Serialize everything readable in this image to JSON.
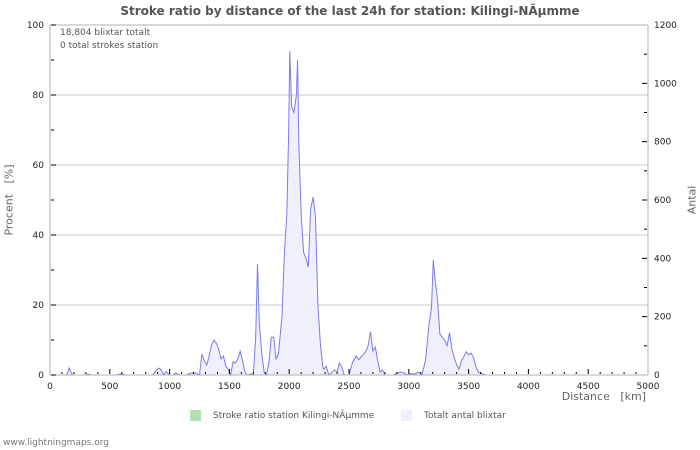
{
  "chart_data": {
    "type": "area",
    "title": "Stroke ratio by distance of the last 24h for station: Kilingi-NÃµmme",
    "xlabel": "Distance   [km]",
    "ylabel_left": "Procent   [%]",
    "ylabel_right": "Antal",
    "xlim": [
      0,
      5000
    ],
    "ylim_left": [
      0,
      100
    ],
    "ylim_right": [
      0,
      1200
    ],
    "x_ticks": [
      0,
      500,
      1000,
      1500,
      2000,
      2500,
      3000,
      3500,
      4000,
      4500,
      5000
    ],
    "y_left_ticks": [
      0,
      20,
      40,
      60,
      80,
      100
    ],
    "y_right_ticks": [
      0,
      200,
      400,
      600,
      800,
      1000,
      1200
    ],
    "grid": true,
    "legend_position": "bottom",
    "annotations": [
      "18,804 blixtar totalt",
      "0 total strokes station"
    ],
    "series": [
      {
        "name": "Stroke ratio station Kilingi-NÃµmme",
        "axis": "left",
        "color": "#b3e0b3",
        "points": []
      },
      {
        "name": "Totalt antal blixtar",
        "axis": "right",
        "color": "#7b7bea",
        "fill": "#f0f0fc",
        "points": [
          [
            0,
            0
          ],
          [
            140,
            0
          ],
          [
            160,
            24
          ],
          [
            175,
            10
          ],
          [
            190,
            0
          ],
          [
            300,
            0
          ],
          [
            320,
            3
          ],
          [
            340,
            0
          ],
          [
            560,
            0
          ],
          [
            580,
            3
          ],
          [
            610,
            3
          ],
          [
            630,
            0
          ],
          [
            860,
            0
          ],
          [
            880,
            12
          ],
          [
            910,
            24
          ],
          [
            930,
            17
          ],
          [
            950,
            0
          ],
          [
            970,
            12
          ],
          [
            990,
            3
          ],
          [
            1010,
            0
          ],
          [
            1030,
            0
          ],
          [
            1050,
            7
          ],
          [
            1070,
            3
          ],
          [
            1090,
            0
          ],
          [
            1140,
            0
          ],
          [
            1180,
            7
          ],
          [
            1220,
            7
          ],
          [
            1250,
            0
          ],
          [
            1270,
            72
          ],
          [
            1290,
            48
          ],
          [
            1310,
            34
          ],
          [
            1330,
            65
          ],
          [
            1350,
            103
          ],
          [
            1370,
            120
          ],
          [
            1390,
            110
          ],
          [
            1410,
            90
          ],
          [
            1430,
            55
          ],
          [
            1450,
            65
          ],
          [
            1470,
            30
          ],
          [
            1490,
            20
          ],
          [
            1510,
            0
          ],
          [
            1530,
            45
          ],
          [
            1550,
            41
          ],
          [
            1570,
            55
          ],
          [
            1590,
            82
          ],
          [
            1610,
            48
          ],
          [
            1630,
            10
          ],
          [
            1650,
            0
          ],
          [
            1670,
            3
          ],
          [
            1690,
            3
          ],
          [
            1700,
            0
          ],
          [
            1720,
            130
          ],
          [
            1735,
            380
          ],
          [
            1750,
            180
          ],
          [
            1770,
            75
          ],
          [
            1790,
            10
          ],
          [
            1810,
            0
          ],
          [
            1830,
            41
          ],
          [
            1850,
            130
          ],
          [
            1870,
            130
          ],
          [
            1890,
            55
          ],
          [
            1910,
            72
          ],
          [
            1940,
            200
          ],
          [
            1960,
            420
          ],
          [
            1980,
            550
          ],
          [
            1995,
            820
          ],
          [
            2005,
            1110
          ],
          [
            2020,
            920
          ],
          [
            2040,
            900
          ],
          [
            2060,
            960
          ],
          [
            2070,
            1080
          ],
          [
            2080,
            800
          ],
          [
            2100,
            550
          ],
          [
            2120,
            420
          ],
          [
            2140,
            400
          ],
          [
            2160,
            370
          ],
          [
            2180,
            570
          ],
          [
            2200,
            610
          ],
          [
            2220,
            540
          ],
          [
            2240,
            240
          ],
          [
            2260,
            110
          ],
          [
            2280,
            30
          ],
          [
            2290,
            20
          ],
          [
            2310,
            30
          ],
          [
            2330,
            0
          ],
          [
            2360,
            10
          ],
          [
            2380,
            17
          ],
          [
            2400,
            10
          ],
          [
            2420,
            41
          ],
          [
            2440,
            27
          ],
          [
            2460,
            0
          ],
          [
            2500,
            0
          ],
          [
            2530,
            44
          ],
          [
            2560,
            65
          ],
          [
            2580,
            52
          ],
          [
            2600,
            62
          ],
          [
            2620,
            70
          ],
          [
            2640,
            80
          ],
          [
            2660,
            100
          ],
          [
            2680,
            148
          ],
          [
            2700,
            82
          ],
          [
            2720,
            96
          ],
          [
            2740,
            50
          ],
          [
            2760,
            10
          ],
          [
            2780,
            17
          ],
          [
            2800,
            0
          ],
          [
            2870,
            0
          ],
          [
            2900,
            5
          ],
          [
            2930,
            10
          ],
          [
            2960,
            7
          ],
          [
            2990,
            0
          ],
          [
            3020,
            5
          ],
          [
            3050,
            3
          ],
          [
            3080,
            10
          ],
          [
            3110,
            0
          ],
          [
            3140,
            50
          ],
          [
            3170,
            175
          ],
          [
            3190,
            230
          ],
          [
            3205,
            395
          ],
          [
            3220,
            325
          ],
          [
            3240,
            260
          ],
          [
            3260,
            140
          ],
          [
            3280,
            130
          ],
          [
            3300,
            120
          ],
          [
            3320,
            100
          ],
          [
            3340,
            145
          ],
          [
            3360,
            90
          ],
          [
            3380,
            60
          ],
          [
            3400,
            35
          ],
          [
            3420,
            20
          ],
          [
            3440,
            48
          ],
          [
            3460,
            62
          ],
          [
            3480,
            80
          ],
          [
            3500,
            70
          ],
          [
            3520,
            75
          ],
          [
            3540,
            60
          ],
          [
            3560,
            30
          ],
          [
            3580,
            10
          ],
          [
            3600,
            7
          ],
          [
            3620,
            3
          ],
          [
            3640,
            0
          ],
          [
            5000,
            0
          ]
        ]
      }
    ]
  },
  "header": {
    "title": "Stroke ratio by distance of the last 24h for station: Kilingi-NÃµmme"
  },
  "info": {
    "total_strokes": "18,804 blixtar totalt",
    "station_strokes": "0 total strokes station"
  },
  "axes": {
    "xlabel": "Distance   [km]",
    "ylabel_left": "Procent   [%]",
    "ylabel_right": "Antal"
  },
  "legend": {
    "items": [
      {
        "label": "Stroke ratio station Kilingi-NÃµmme",
        "color": "#b3e0b3"
      },
      {
        "label": "Totalt antal blixtar",
        "color": "#f0f0fc"
      }
    ]
  },
  "footer": {
    "credit": "www.lightningmaps.org"
  },
  "colors": {
    "grid": "#c8c8c8",
    "axis": "#b0b0b0",
    "line": "#7b7bea",
    "fill": "#f0f0fc",
    "text": "#333333"
  }
}
